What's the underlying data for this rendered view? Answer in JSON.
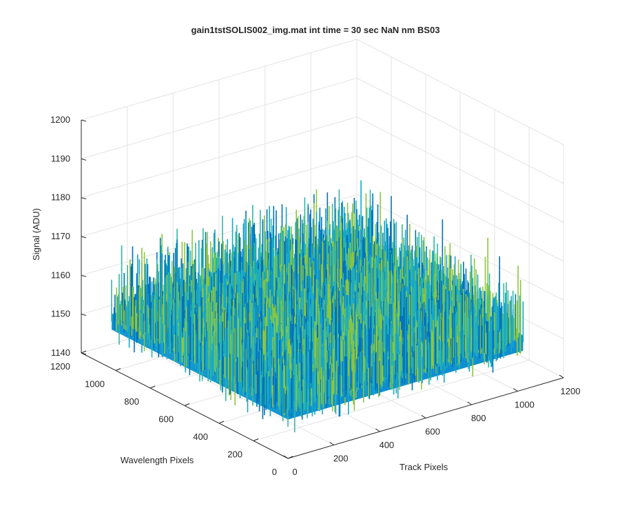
{
  "chart_data": {
    "type": "surface",
    "title": "gain1tstSOLIS002_img.mat int time = 30 sec  NaN nm BS03",
    "xlabel": "Track Pixels",
    "ylabel": "Wavelength Pixels",
    "zlabel": "Signal (ADU)",
    "xlim": [
      0,
      1200
    ],
    "ylim": [
      0,
      1200
    ],
    "zlim": [
      1140,
      1200
    ],
    "x_ticks": [
      "0",
      "200",
      "400",
      "600",
      "800",
      "1000",
      "1200"
    ],
    "y_ticks": [
      "0",
      "200",
      "400",
      "600",
      "800",
      "1000",
      "1200"
    ],
    "z_ticks": [
      "1140",
      "1150",
      "1160",
      "1170",
      "1180",
      "1190",
      "1200"
    ],
    "surface_extent": {
      "x": [
        0,
        1024
      ],
      "y": [
        0,
        1024
      ]
    },
    "signal_mean": 1154,
    "signal_range": [
      1145,
      1175
    ],
    "grid": true,
    "colormap": [
      "#0072bd",
      "#17a6c8",
      "#2fb7a6",
      "#8cc63f"
    ],
    "axis_color": "#262626",
    "grid_color": "#e3e3e3"
  }
}
